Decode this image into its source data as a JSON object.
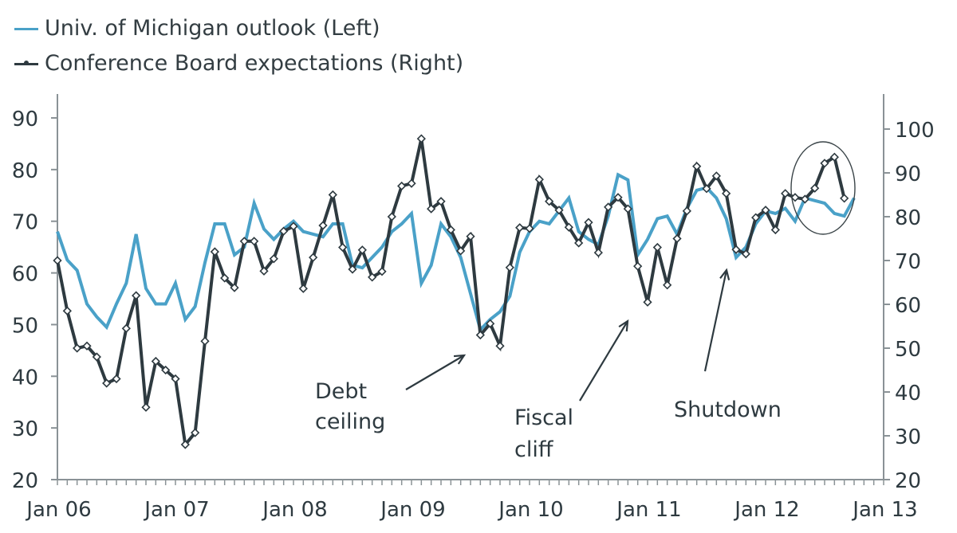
{
  "chart_data": {
    "type": "line",
    "title": "",
    "legend": {
      "placement": "top-left",
      "entries": [
        {
          "name": "Univ. of Michigan outlook (Left)",
          "color": "#4aa1c8",
          "marker": "none"
        },
        {
          "name": "Conference Board expectations (Right)",
          "color": "#2e3a40",
          "marker": "diamond"
        }
      ]
    },
    "x_ticks": [
      "Jan 06",
      "Jan 07",
      "Jan 08",
      "Jan 09",
      "Jan 10",
      "Jan 11",
      "Jan 12",
      "Jan 13"
    ],
    "x_range": [
      "Jan 06",
      "Jan 13"
    ],
    "x_minor_ticks": "monthly",
    "left_axis": {
      "ylim": [
        20,
        90
      ],
      "ticks": [
        "20",
        "30",
        "40",
        "50",
        "60",
        "70",
        "80",
        "90"
      ]
    },
    "right_axis": {
      "ylim": [
        20,
        100
      ],
      "ticks": [
        "20",
        "30",
        "40",
        "50",
        "60",
        "70",
        "80",
        "90",
        "100"
      ]
    },
    "x_start": "Jan 06",
    "frequency": "monthly",
    "series": [
      {
        "name": "Univ. of Michigan outlook (Left)",
        "axis": "left",
        "color": "#4aa1c8",
        "values": [
          68,
          62.5,
          60.5,
          54,
          51.5,
          49.5,
          54,
          58,
          67.5,
          57,
          54,
          54,
          58,
          51,
          53.5,
          62,
          69.5,
          69.5,
          63.5,
          65,
          73.5,
          68.5,
          66.5,
          68.5,
          70,
          68,
          67.5,
          67,
          69.5,
          69.5,
          61.5,
          61,
          63,
          65,
          68,
          69.5,
          71.5,
          58,
          61.5,
          69.5,
          67,
          63,
          56,
          49,
          51,
          52.5,
          55.5,
          64,
          68,
          70,
          69.5,
          72,
          74.5,
          68,
          66.5,
          65.5,
          71,
          79,
          78,
          63.5,
          66.5,
          70.5,
          71,
          67.5,
          72.5,
          76,
          76.5,
          74.5,
          70.5,
          63,
          65,
          69.5,
          72,
          71.5,
          72.5,
          70,
          74.5,
          74,
          73.5,
          71.5,
          71,
          74.5
        ]
      },
      {
        "name": "Conference Board expectations (Right)",
        "axis": "right",
        "color": "#2e3a40",
        "values": [
          70,
          58.5,
          50,
          50.5,
          48,
          42,
          43,
          54.5,
          62,
          36.5,
          47,
          45,
          43,
          28,
          30.7,
          51.6,
          72,
          66,
          63.8,
          74.4,
          74.4,
          67.6,
          70.4,
          76.7,
          77.8,
          63.6,
          70.7,
          78,
          85,
          73,
          68,
          72.4,
          66.2,
          67.5,
          80,
          87,
          87.6,
          97.8,
          81.8,
          83.5,
          77,
          72.2,
          75.5,
          53,
          55.6,
          50.5,
          68.4,
          77.5,
          77.3,
          88.5,
          83.5,
          81.5,
          77.6,
          74,
          78.7,
          71.8,
          82.2,
          84.4,
          81.8,
          68.7,
          60.5,
          73,
          64.4,
          75,
          81.3,
          91.5,
          86.4,
          89.3,
          85.3,
          72.5,
          71.5,
          79.8,
          81.5,
          77,
          85.3,
          84.4,
          84,
          86.5,
          92.2,
          93.6,
          84.2
        ]
      }
    ],
    "annotations": [
      {
        "text": [
          "Debt",
          "ceiling"
        ],
        "points_to": "Aug 09"
      },
      {
        "text": [
          "Fiscal",
          "cliff"
        ],
        "points_to": "Dec 10"
      },
      {
        "text": [
          "Shutdown"
        ],
        "points_to": "Oct 11"
      },
      {
        "shape": "ellipse",
        "highlights": "Jun 12 – Sep 12"
      }
    ],
    "grid": false
  }
}
